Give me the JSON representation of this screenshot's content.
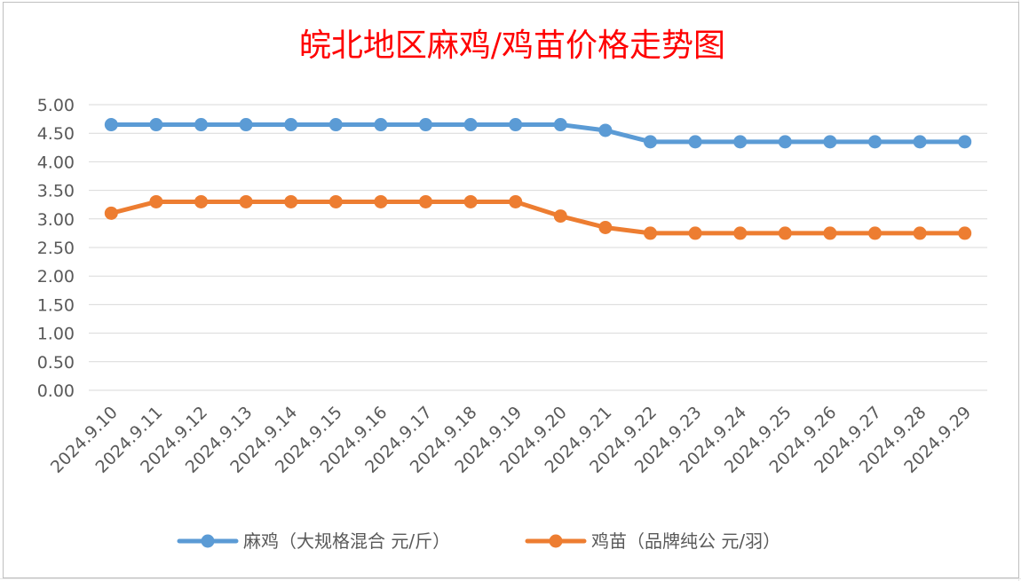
{
  "chart_data": {
    "type": "line",
    "title": "皖北地区麻鸡/鸡苗价格走势图",
    "title_color": "#ff0000",
    "categories": [
      "2024.9.10",
      "2024.9.11",
      "2024.9.12",
      "2024.9.13",
      "2024.9.14",
      "2024.9.15",
      "2024.9.16",
      "2024.9.17",
      "2024.9.18",
      "2024.9.19",
      "2024.9.20",
      "2024.9.21",
      "2024.9.22",
      "2024.9.23",
      "2024.9.24",
      "2024.9.25",
      "2024.9.26",
      "2024.9.27",
      "2024.9.28",
      "2024.9.29"
    ],
    "y_ticks": [
      "0.00",
      "0.50",
      "1.00",
      "1.50",
      "2.00",
      "2.50",
      "3.00",
      "3.50",
      "4.00",
      "4.50",
      "5.00"
    ],
    "ylim": [
      0,
      5
    ],
    "grid": true,
    "legend_position": "bottom",
    "series": [
      {
        "name": "麻鸡（大规格混合 元/斤）",
        "color": "#5b9bd5",
        "values": [
          4.65,
          4.65,
          4.65,
          4.65,
          4.65,
          4.65,
          4.65,
          4.65,
          4.65,
          4.65,
          4.65,
          4.55,
          4.35,
          4.35,
          4.35,
          4.35,
          4.35,
          4.35,
          4.35,
          4.35
        ]
      },
      {
        "name": "鸡苗（品牌纯公 元/羽）",
        "color": "#ed7d31",
        "values": [
          3.1,
          3.3,
          3.3,
          3.3,
          3.3,
          3.3,
          3.3,
          3.3,
          3.3,
          3.3,
          3.05,
          2.85,
          2.75,
          2.75,
          2.75,
          2.75,
          2.75,
          2.75,
          2.75,
          2.75
        ]
      }
    ]
  }
}
